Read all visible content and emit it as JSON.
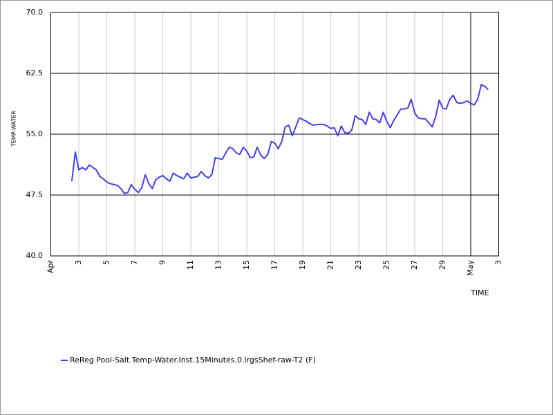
{
  "chart_data": {
    "type": "line",
    "y_label": "TEMP-WATER",
    "x_label": "TIME",
    "xlim": [
      1,
      33
    ],
    "xticks": [
      {
        "value": 1,
        "label": "Apr"
      },
      3,
      5,
      7,
      9,
      11,
      13,
      15,
      17,
      19,
      21,
      23,
      25,
      27,
      29,
      {
        "value": 31,
        "label": "May"
      },
      {
        "value": 33,
        "label": "3"
      }
    ],
    "ylim": [
      40,
      70
    ],
    "yticks": [
      {
        "value": 40,
        "label": "40.0"
      },
      47.5,
      {
        "value": 55,
        "label": "55.0"
      },
      62.5,
      {
        "value": 70,
        "label": "70.0"
      }
    ],
    "grid": true,
    "legend": "bottom-left",
    "x": [
      2.5,
      2.75,
      3,
      3.25,
      3.5,
      3.75,
      4,
      4.25,
      4.5,
      4.75,
      5,
      5.25,
      5.5,
      5.75,
      6,
      6.25,
      6.5,
      6.75,
      7,
      7.25,
      7.5,
      7.75,
      8,
      8.25,
      8.5,
      8.75,
      9,
      9.25,
      9.5,
      9.75,
      10,
      10.25,
      10.5,
      10.75,
      11,
      11.25,
      11.5,
      11.75,
      12,
      12.25,
      12.5,
      12.75,
      13,
      13.25,
      13.5,
      13.75,
      14,
      14.25,
      14.5,
      14.75,
      15,
      15.25,
      15.5,
      15.75,
      16,
      16.25,
      16.5,
      16.75,
      17,
      17.25,
      17.5,
      17.75,
      18,
      18.25,
      18.5,
      18.75,
      19,
      19.25,
      19.5,
      19.75,
      20,
      20.25,
      20.5,
      20.75,
      21,
      21.25,
      21.5,
      21.75,
      22,
      22.25,
      22.5,
      22.75,
      23,
      23.25,
      23.5,
      23.75,
      24,
      24.25,
      24.5,
      24.75,
      25,
      25.25,
      25.5,
      25.75,
      26,
      26.25,
      26.5,
      26.75,
      27,
      27.25,
      27.5,
      27.75,
      28,
      28.25,
      28.5,
      28.75,
      29,
      29.25,
      29.5,
      29.75,
      30,
      30.25,
      30.5,
      30.75,
      31,
      31.25,
      31.5,
      31.75,
      32,
      32.25
    ],
    "series": [
      {
        "name": "ReReg Pool-Salt.Temp-Water.Inst.15Minutes.0.lrgsShef-raw-T2 (F)",
        "color": "#4040e0",
        "values": [
          49.2,
          52.8,
          50.6,
          50.9,
          50.6,
          51.2,
          50.9,
          50.6,
          49.8,
          49.5,
          49.1,
          48.9,
          48.8,
          48.7,
          48.3,
          47.7,
          47.8,
          48.8,
          48.2,
          47.8,
          48.4,
          50.0,
          48.9,
          48.3,
          49.4,
          49.7,
          49.9,
          49.5,
          49.2,
          50.2,
          49.9,
          49.7,
          49.5,
          50.2,
          49.6,
          49.7,
          49.8,
          50.4,
          49.9,
          49.6,
          50.0,
          52.1,
          52.0,
          51.9,
          52.7,
          53.4,
          53.2,
          52.7,
          52.5,
          53.4,
          52.9,
          52.1,
          52.2,
          53.4,
          52.4,
          52.0,
          52.5,
          54.1,
          53.9,
          53.2,
          54.1,
          55.9,
          56.1,
          54.8,
          55.9,
          57.0,
          56.8,
          56.6,
          56.3,
          56.1,
          56.2,
          56.2,
          56.2,
          56.0,
          55.7,
          55.8,
          54.8,
          56.0,
          55.2,
          55.1,
          55.5,
          57.3,
          56.9,
          56.8,
          56.2,
          57.7,
          56.9,
          56.8,
          56.4,
          57.7,
          56.6,
          55.8,
          56.7,
          57.4,
          58.1,
          58.1,
          58.2,
          59.3,
          57.6,
          57.0,
          56.9,
          56.9,
          56.4,
          55.9,
          57.2,
          59.2,
          58.2,
          58.1,
          59.3,
          59.8,
          58.9,
          58.8,
          58.9,
          59.1,
          58.8,
          58.6,
          59.3,
          61.1,
          60.9,
          60.5
        ]
      }
    ]
  }
}
